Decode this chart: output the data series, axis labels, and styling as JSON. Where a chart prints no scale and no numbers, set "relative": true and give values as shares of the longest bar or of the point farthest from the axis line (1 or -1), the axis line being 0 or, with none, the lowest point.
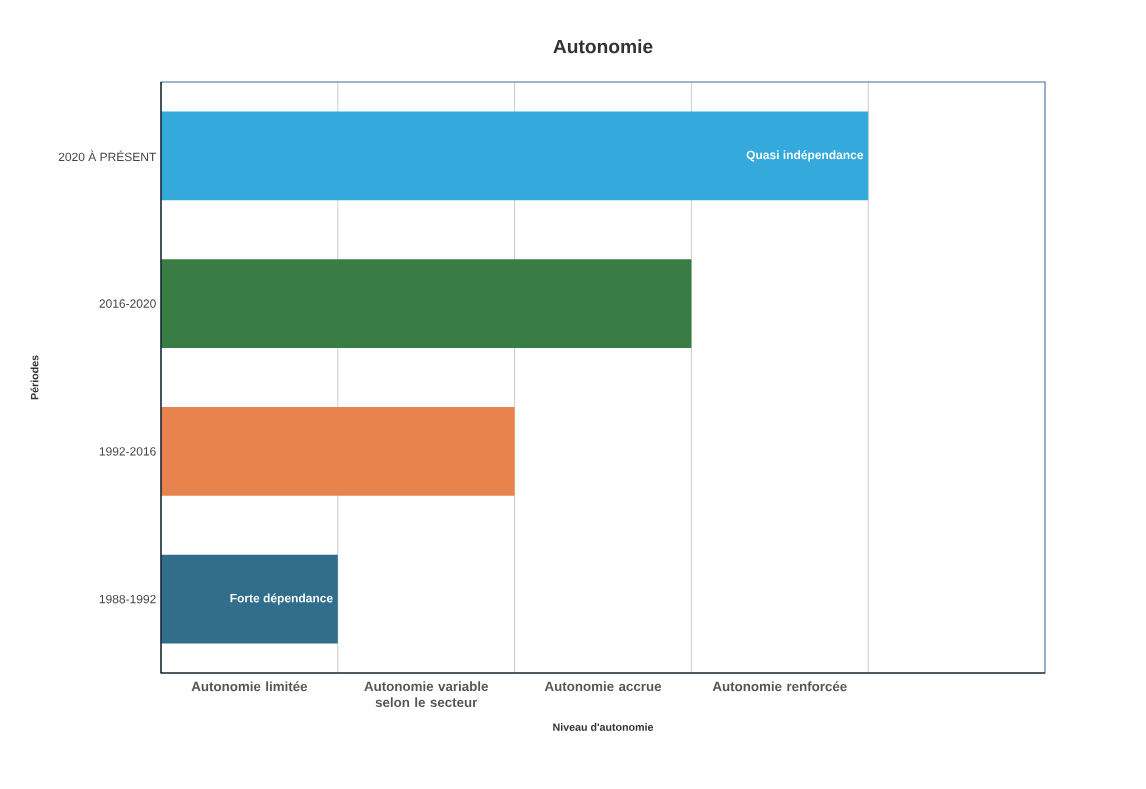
{
  "chart_data": {
    "type": "bar",
    "orientation": "horizontal",
    "relative": true,
    "title": "Autonomie",
    "xlabel": "Niveau d'autonomie",
    "ylabel": "Périodes",
    "categories": [
      "2020 À PRÉSENT",
      "2016-2020",
      "1992-2016",
      "1988-1992"
    ],
    "values": [
      1,
      0.75,
      0.5,
      0.25
    ],
    "colors": [
      "#33a9dc",
      "#3a7d44",
      "#e8834d",
      "#316e8c"
    ],
    "grid": "x",
    "annotations": [
      "Autonomie limitée",
      "Autonomie variable selon le secteur",
      "Autonomie accrue",
      "Autonomie renforcée",
      {
        "text": "Quasi indépendance",
        "x": 1,
        "y": "2020 À PRÉSENT"
      },
      {
        "text": "Forte dépendance",
        "x": 0.25,
        "y": "1988-1992"
      }
    ]
  }
}
